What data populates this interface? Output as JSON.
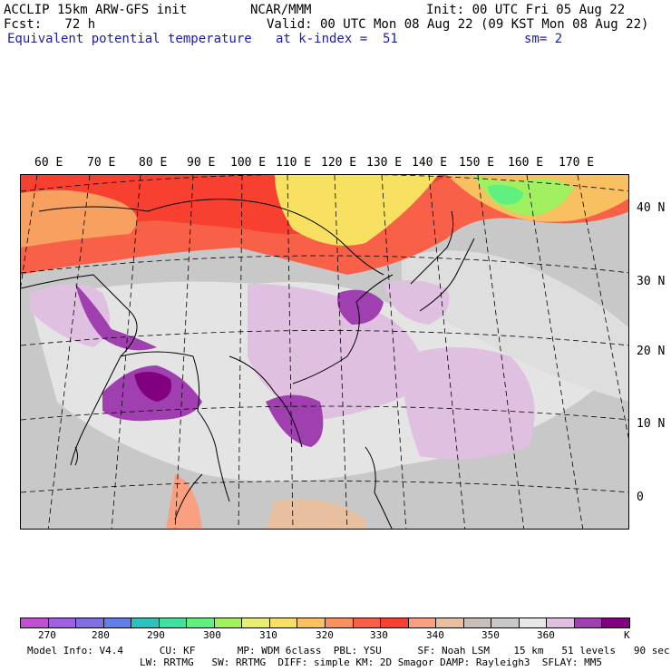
{
  "header": {
    "line1_left": "ACCLIP 15km ARW-GFS init",
    "line1_mid": "NCAR/MMM",
    "line1_right": "Init: 00 UTC Fri 05 Aug 22",
    "line2_left": "Fcst:   72 h",
    "line2_right": "Valid: 00 UTC Mon 08 Aug 22 (09 KST Mon 08 Aug 22)",
    "field_name": "Equivalent potential temperature",
    "level": "at k-index =  51",
    "smoothing": "sm= 2"
  },
  "map": {
    "longitude_labels": [
      "60 E",
      "70 E",
      "80 E",
      "90 E",
      "100 E",
      "110 E",
      "120 E",
      "130 E",
      "140 E",
      "150 E",
      "160 E",
      "170 E"
    ],
    "latitude_labels": [
      "40 N",
      "30 N",
      "20 N",
      "10 N",
      "0"
    ]
  },
  "colorbar": {
    "unit": "K",
    "colors": [
      "#c050d0",
      "#a060e0",
      "#8070e0",
      "#6080e8",
      "#30c0c0",
      "#40e0a0",
      "#60f080",
      "#a0f060",
      "#e8f070",
      "#f8e060",
      "#f8c060",
      "#f89060",
      "#f86048",
      "#f84030",
      "#f8a080",
      "#e8c0a0",
      "#c8c0b8",
      "#c8c8c8",
      "#e8e8e8",
      "#e0c0e0",
      "#a040b0",
      "#800080"
    ],
    "tick_labels": [
      "270",
      "280",
      "290",
      "300",
      "310",
      "320",
      "330",
      "340",
      "350",
      "360"
    ]
  },
  "footer": {
    "line1": "Model Info: V4.4      CU: KF       MP: WDM 6class  PBL: YSU      SF: Noah LSM    15 km   51 levels   90 sec",
    "line2": "LW: RRTMG   SW: RRTMG  DIFF: simple KM: 2D Smagor DAMP: Rayleigh3  SFLAY: MM5"
  }
}
